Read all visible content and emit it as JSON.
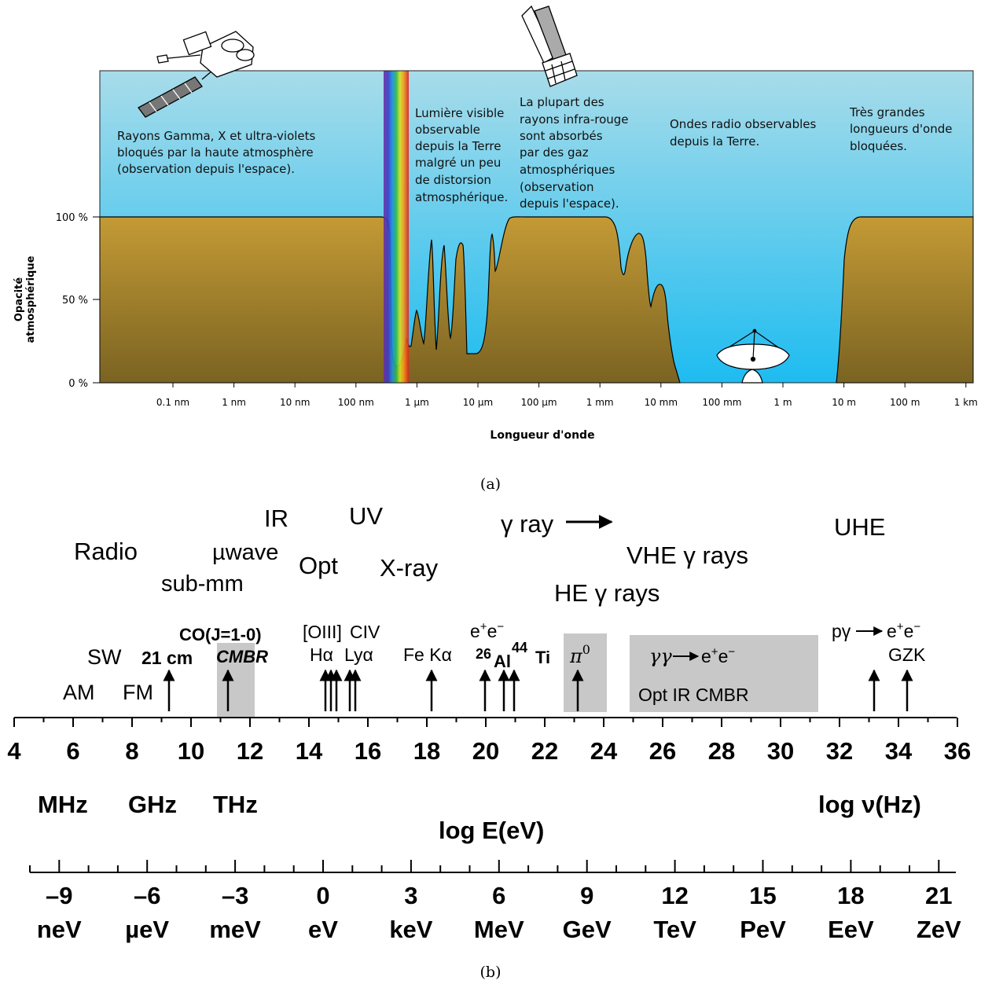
{
  "panel_a": {
    "caption": "(a)",
    "y_axis_label_line1": "Opacité",
    "y_axis_label_line2": "atmosphérique",
    "y_ticks": [
      "100 %",
      "50 %",
      "0 %"
    ],
    "x_axis_label": "Longueur d'onde",
    "x_ticks": [
      "0.1 nm",
      "1 nm",
      "10 nm",
      "100 nm",
      "1 µm",
      "10 µm",
      "100 µm",
      "1 mm",
      "10 mm",
      "100 mm",
      "1 m",
      "10 m",
      "100 m",
      "1 km"
    ],
    "annotations": [
      [
        "Rayons Gamma, X et ultra-violets",
        "bloqués par la haute atmosphère",
        "(observation depuis l'espace)."
      ],
      [
        "Lumière visible",
        "observable",
        "depuis la Terre",
        "malgré un peu",
        "de distorsion",
        "atmosphérique."
      ],
      [
        "La plupart des",
        "rayons infra-rouge",
        "sont absorbés",
        "par des gaz",
        "atmosphériques",
        "(observation",
        "depuis l'espace)."
      ],
      [
        "Ondes radio observables",
        "depuis la Terre."
      ],
      [
        "Très grandes",
        "longueurs d'onde",
        "bloquées."
      ]
    ],
    "colors": {
      "sky_top": "#a8dcea",
      "sky_bottom": "#1ebcf0",
      "ground_top": "#c49a35",
      "ground_bottom": "#7a6322"
    },
    "chart_data": {
      "type": "area",
      "x_scale": "log",
      "xlabel": "Longueur d'onde",
      "ylabel": "Opacité atmosphérique",
      "ylim": [
        0,
        100
      ],
      "x_tick_labels": [
        "0.1 nm",
        "1 nm",
        "10 nm",
        "100 nm",
        "1 µm",
        "10 µm",
        "100 µm",
        "1 mm",
        "10 mm",
        "100 mm",
        "1 m",
        "10 m",
        "100 m",
        "1 km"
      ],
      "x_m": [
        1e-11,
        3e-07,
        3.5e-07,
        4e-07,
        5e-07,
        7e-07,
        8e-07,
        1e-06,
        1.2e-06,
        1.5e-06,
        1.9e-06,
        2.5e-06,
        3.2e-06,
        5e-06,
        7e-06,
        1e-05,
        1.7e-05,
        2.2e-05,
        3e-05,
        4e-05,
        5e-05,
        0.0001,
        0.001,
        0.002,
        0.0035,
        0.005,
        0.008,
        0.012,
        0.02,
        0.04,
        15.0,
        20.0,
        30.0,
        50.0,
        2000.0
      ],
      "opacity_pct": [
        100,
        100,
        55,
        8,
        12,
        25,
        15,
        35,
        18,
        80,
        20,
        85,
        18,
        85,
        17,
        17,
        90,
        45,
        95,
        100,
        100,
        100,
        100,
        90,
        63,
        90,
        30,
        60,
        20,
        0,
        0,
        40,
        100,
        100,
        100
      ]
    }
  },
  "panel_b": {
    "caption": "(b)",
    "bands": [
      "Radio",
      "µwave",
      "sub-mm",
      "IR",
      "Opt",
      "UV",
      "X-ray",
      "γ ray",
      "VHE γ rays",
      "HE γ rays",
      "UHE"
    ],
    "lines": [
      "AM",
      "FM",
      "SW",
      "21 cm",
      "CO(J=1-0)",
      "CMBR",
      "[OIII]",
      "CIV",
      "Hα",
      "Lyα",
      "Fe Kα",
      "e+e−",
      "26",
      "Al",
      "44",
      "Ti",
      "π0",
      "γγ",
      "e+e−",
      "Opt IR CMBR",
      "pγ",
      "e+e−",
      "GZK"
    ],
    "freq_ticks": [
      "4",
      "6",
      "8",
      "10",
      "12",
      "14",
      "16",
      "18",
      "20",
      "22",
      "24",
      "26",
      "28",
      "30",
      "32",
      "34",
      "36"
    ],
    "freq_units": [
      "MHz",
      "GHz",
      "THz"
    ],
    "freq_axis_label": "log ν(Hz)",
    "energy_axis_label": "log E(eV)",
    "energy_ticks": [
      "–9",
      "–6",
      "–3",
      "0",
      "3",
      "6",
      "9",
      "12",
      "15",
      "18",
      "21"
    ],
    "energy_units": [
      "neV",
      "µeV",
      "meV",
      "eV",
      "keV",
      "MeV",
      "GeV",
      "TeV",
      "PeV",
      "EeV",
      "ZeV"
    ]
  }
}
